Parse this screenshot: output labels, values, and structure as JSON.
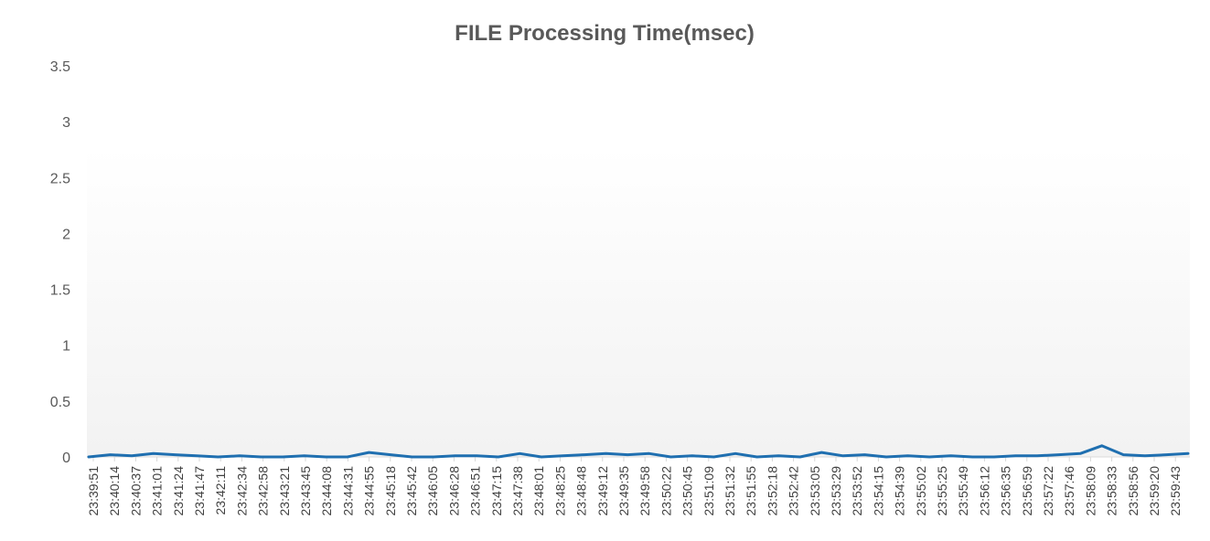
{
  "chart_data": {
    "type": "line",
    "title": "FILE Processing Time(msec)",
    "xlabel": "",
    "ylabel": "",
    "ylim": [
      0,
      3.5
    ],
    "yticks": [
      "0",
      "0.5",
      "1",
      "1.5",
      "2",
      "2.5",
      "3",
      "3.5"
    ],
    "grid": false,
    "legend": "none",
    "line_color": "#1f6fb0",
    "categories": [
      "23:39:51",
      "23:40:14",
      "23:40:37",
      "23:41:01",
      "23:41:24",
      "23:41:47",
      "23:42:11",
      "23:42:34",
      "23:42:58",
      "23:43:21",
      "23:43:45",
      "23:44:08",
      "23:44:31",
      "23:44:55",
      "23:45:18",
      "23:45:42",
      "23:46:05",
      "23:46:28",
      "23:46:51",
      "23:47:15",
      "23:47:38",
      "23:48:01",
      "23:48:25",
      "23:48:48",
      "23:49:12",
      "23:49:35",
      "23:49:58",
      "23:50:22",
      "23:50:45",
      "23:51:09",
      "23:51:32",
      "23:51:55",
      "23:52:18",
      "23:52:42",
      "23:53:05",
      "23:53:29",
      "23:53:52",
      "23:54:15",
      "23:54:39",
      "23:55:02",
      "23:55:25",
      "23:55:49",
      "23:56:12",
      "23:56:35",
      "23:56:59",
      "23:57:22",
      "23:57:46",
      "23:58:09",
      "23:58:33",
      "23:58:56",
      "23:59:20",
      "23:59:43"
    ],
    "series": [
      {
        "values": [
          0,
          0.02,
          0.01,
          0.03,
          0.02,
          0.01,
          0,
          0.01,
          0,
          0,
          0.01,
          0,
          0,
          0.04,
          0.02,
          0,
          0,
          0.01,
          0.01,
          0,
          0.03,
          0,
          0.01,
          0.02,
          0.03,
          0.02,
          0.03,
          0,
          0.01,
          0,
          0.03,
          0,
          0.01,
          0,
          0.04,
          0.01,
          0.02,
          0,
          0.01,
          0,
          0.01,
          0,
          0,
          0.01,
          0.01,
          0.02,
          0.03,
          0.1,
          0.02,
          0.01,
          0.02,
          0.03
        ]
      }
    ]
  }
}
